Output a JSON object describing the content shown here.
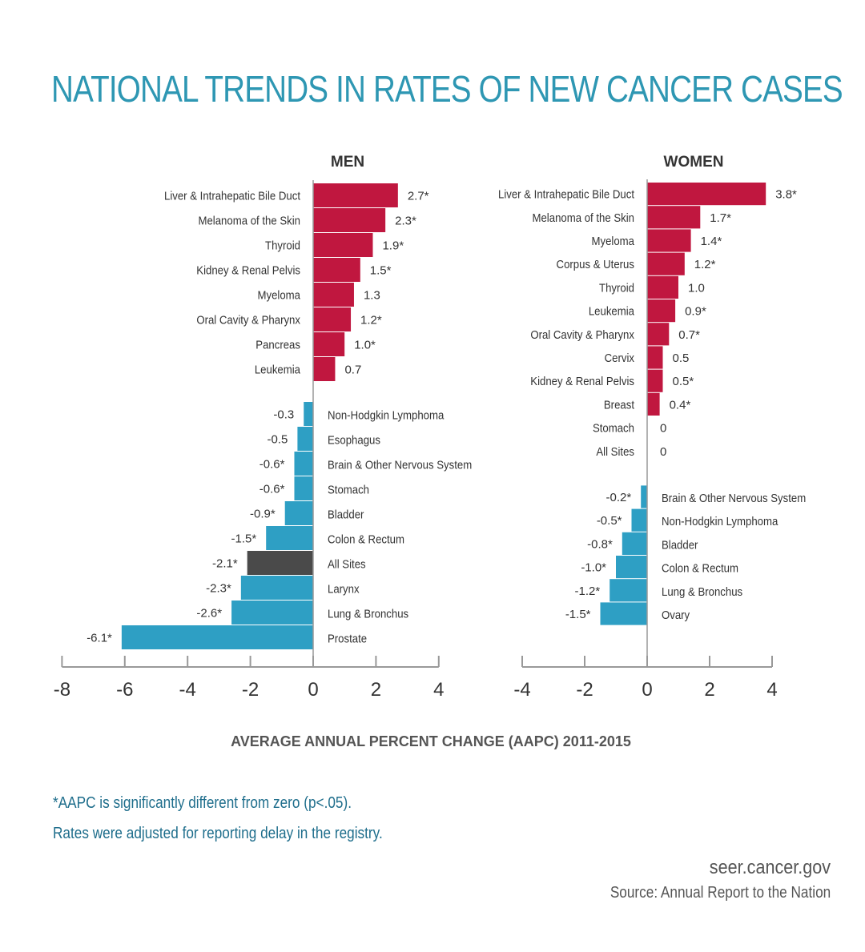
{
  "title": "NATIONAL TRENDS IN RATES OF  NEW CANCER CASES",
  "footnotes": {
    "significance": "*AAPC is significantly different from zero (p<.05).",
    "adjustment": "Rates were adjusted for reporting delay in the registry."
  },
  "website": "seer.cancer.gov",
  "source": "Source: Annual Report to the Nation",
  "colors": {
    "title": "#2e97b3",
    "increase": "#c0173f",
    "decrease": "#2e9fc4",
    "all_sites_highlight": "#4a4a4a",
    "axis": "#999999",
    "text": "#333333",
    "footnote": "#1f6e8c"
  },
  "chart_data": [
    {
      "type": "bar",
      "orientation": "horizontal",
      "title": "MEN",
      "xlabel": "AVERAGE ANNUAL PERCENT CHANGE (AAPC) 2011-2015",
      "xlim": [
        -8,
        4
      ],
      "xticks": [
        "-8",
        "-6",
        "-4",
        "-2",
        "0",
        "2",
        "4"
      ],
      "bars": [
        {
          "category": "Liver & Intrahepatic Bile Duct",
          "value": 2.7,
          "label": "2.7*"
        },
        {
          "category": "Melanoma of the Skin",
          "value": 2.3,
          "label": "2.3*"
        },
        {
          "category": "Thyroid",
          "value": 1.9,
          "label": "1.9*"
        },
        {
          "category": "Kidney & Renal Pelvis",
          "value": 1.5,
          "label": "1.5*"
        },
        {
          "category": "Myeloma",
          "value": 1.3,
          "label": "1.3"
        },
        {
          "category": "Oral Cavity & Pharynx",
          "value": 1.2,
          "label": "1.2*"
        },
        {
          "category": "Pancreas",
          "value": 1.0,
          "label": "1.0*"
        },
        {
          "category": "Leukemia",
          "value": 0.7,
          "label": "0.7"
        },
        {
          "category": "Non-Hodgkin Lymphoma",
          "value": -0.3,
          "label": "-0.3",
          "gap_before": true
        },
        {
          "category": "Esophagus",
          "value": -0.5,
          "label": "-0.5"
        },
        {
          "category": "Brain & Other Nervous System",
          "value": -0.6,
          "label": "-0.6*"
        },
        {
          "category": "Stomach",
          "value": -0.6,
          "label": "-0.6*"
        },
        {
          "category": "Bladder",
          "value": -0.9,
          "label": "-0.9*"
        },
        {
          "category": "Colon & Rectum",
          "value": -1.5,
          "label": "-1.5*"
        },
        {
          "category": "All Sites",
          "value": -2.1,
          "label": "-2.1*",
          "highlight": true
        },
        {
          "category": "Larynx",
          "value": -2.3,
          "label": "-2.3*"
        },
        {
          "category": "Lung & Bronchus",
          "value": -2.6,
          "label": "-2.6*"
        },
        {
          "category": "Prostate",
          "value": -6.1,
          "label": "-6.1*"
        }
      ]
    },
    {
      "type": "bar",
      "orientation": "horizontal",
      "title": "WOMEN",
      "xlim": [
        -4,
        4
      ],
      "xticks": [
        "-4",
        "-2",
        "0",
        "2",
        "4"
      ],
      "bars": [
        {
          "category": "Liver & Intrahepatic Bile Duct",
          "value": 3.8,
          "label": "3.8*"
        },
        {
          "category": "Melanoma of the Skin",
          "value": 1.7,
          "label": "1.7*"
        },
        {
          "category": "Myeloma",
          "value": 1.4,
          "label": "1.4*"
        },
        {
          "category": "Corpus & Uterus",
          "value": 1.2,
          "label": "1.2*"
        },
        {
          "category": "Thyroid",
          "value": 1.0,
          "label": "1.0"
        },
        {
          "category": "Leukemia",
          "value": 0.9,
          "label": "0.9*"
        },
        {
          "category": "Oral Cavity & Pharynx",
          "value": 0.7,
          "label": "0.7*"
        },
        {
          "category": "Cervix",
          "value": 0.5,
          "label": "0.5"
        },
        {
          "category": "Kidney & Renal Pelvis",
          "value": 0.5,
          "label": "0.5*"
        },
        {
          "category": "Breast",
          "value": 0.4,
          "label": "0.4*"
        },
        {
          "category": "Stomach",
          "value": 0,
          "label": "0"
        },
        {
          "category": "All Sites",
          "value": 0,
          "label": "0"
        },
        {
          "category": "Brain & Other Nervous System",
          "value": -0.2,
          "label": "-0.2*",
          "gap_before": true
        },
        {
          "category": "Non-Hodgkin Lymphoma",
          "value": -0.5,
          "label": "-0.5*"
        },
        {
          "category": "Bladder",
          "value": -0.8,
          "label": "-0.8*"
        },
        {
          "category": "Colon & Rectum",
          "value": -1.0,
          "label": "-1.0*"
        },
        {
          "category": "Lung & Bronchus",
          "value": -1.2,
          "label": "-1.2*"
        },
        {
          "category": "Ovary",
          "value": -1.5,
          "label": "-1.5*"
        }
      ]
    }
  ]
}
